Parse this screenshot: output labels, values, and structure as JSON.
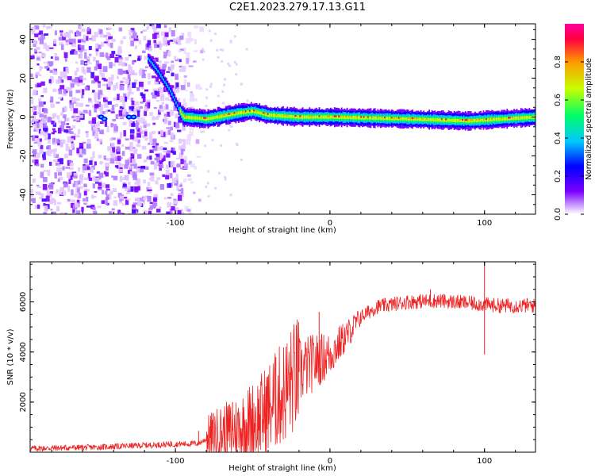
{
  "title": "C2E1.2023.279.17.13.G11",
  "charts": [
    {
      "type": "heatmap",
      "xlabel": "Height of straight line (km)",
      "ylabel": "Frequency (Hz)",
      "xlim": [
        -194,
        133
      ],
      "ylim": [
        -50,
        48
      ],
      "xticks": [
        "-100",
        "0",
        "100"
      ],
      "yticks": [
        "-40",
        "-20",
        "0",
        "20",
        "40"
      ],
      "colorbar": {
        "label": "Normalized spectral amplitude",
        "range": [
          0,
          1
        ],
        "ticks": [
          "0.0",
          "0.2",
          "0.4",
          "0.6",
          "0.8"
        ],
        "colors": [
          "#ffffff",
          "#c896ff",
          "#7b00ff",
          "#0000ff",
          "#00c8ff",
          "#00ff66",
          "#c8ff00",
          "#ff9900",
          "#ff0040",
          "#ff00a0"
        ]
      },
      "ridge": {
        "comment": "dominant spectral line (frequency in Hz vs height in km)",
        "points": [
          [
            -118,
            30
          ],
          [
            -112,
            24
          ],
          [
            -104,
            14
          ],
          [
            -98,
            4
          ],
          [
            -95,
            0
          ],
          [
            -80,
            -1
          ],
          [
            -60,
            2
          ],
          [
            -50,
            3
          ],
          [
            -40,
            1
          ],
          [
            -20,
            0
          ],
          [
            0,
            0
          ],
          [
            50,
            -1
          ],
          [
            90,
            -2
          ],
          [
            133,
            0
          ]
        ]
      }
    },
    {
      "type": "line",
      "xlabel": "Height of straight line (km)",
      "ylabel": "SNR (10 * v/v)",
      "xlim": [
        -194,
        133
      ],
      "ylim": [
        0,
        7600
      ],
      "xticks": [
        "-100",
        "0",
        "100"
      ],
      "yticks": [
        "2000",
        "4000",
        "6000"
      ],
      "color": "#ee2222",
      "series": [
        {
          "envelope": [
            [
              -194,
              150
            ],
            [
              -150,
              200
            ],
            [
              -110,
              300
            ],
            [
              -85,
              350
            ],
            [
              -75,
              700
            ],
            [
              -60,
              900
            ],
            [
              -45,
              1400
            ],
            [
              -30,
              2400
            ],
            [
              -20,
              3200
            ],
            [
              -10,
              3600
            ],
            [
              0,
              3900
            ],
            [
              10,
              4600
            ],
            [
              20,
              5400
            ],
            [
              30,
              5800
            ],
            [
              50,
              6000
            ],
            [
              70,
              6050
            ],
            [
              90,
              5950
            ],
            [
              110,
              5850
            ],
            [
              133,
              5850
            ]
          ],
          "spikes": [
            [
              -103,
              450
            ],
            [
              -85,
              850
            ],
            [
              -63,
              2000
            ],
            [
              -35,
              3800
            ],
            [
              -20,
              4400
            ],
            [
              -7,
              5600
            ],
            [
              65,
              6500
            ],
            [
              100,
              7500
            ],
            [
              100,
              3900
            ]
          ]
        }
      ]
    }
  ]
}
